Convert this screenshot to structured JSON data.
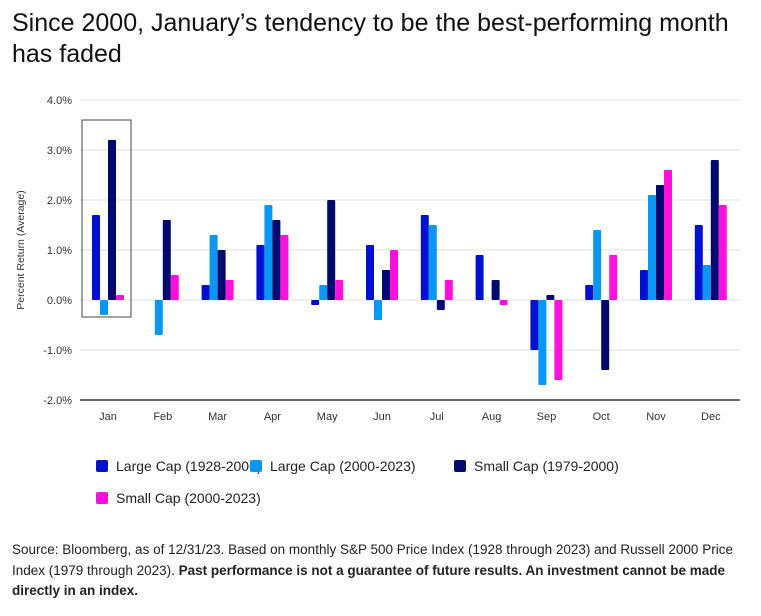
{
  "chart_data": {
    "type": "bar",
    "title": "Since 2000, January’s tendency to be the best-performing month has faded",
    "xlabel": "",
    "ylabel": "Percent Return (Average)",
    "ylim": [
      -2,
      4
    ],
    "yticks": [
      "-2.0%",
      "-1.0%",
      "0.0%",
      "1.0%",
      "2.0%",
      "3.0%",
      "4.0%"
    ],
    "ytick_values": [
      -2,
      -1,
      0,
      1,
      2,
      3,
      4
    ],
    "grid": true,
    "legend_placement": "bottom",
    "highlight_category": "Jan",
    "categories": [
      "Jan",
      "Feb",
      "Mar",
      "Apr",
      "May",
      "Jun",
      "Jul",
      "Aug",
      "Sep",
      "Oct",
      "Nov",
      "Dec"
    ],
    "series": [
      {
        "name": "Large Cap (1928-2000)",
        "color": "#0010d0",
        "values": [
          1.7,
          0.0,
          0.3,
          1.1,
          -0.1,
          1.1,
          1.7,
          0.9,
          -1.0,
          0.3,
          0.6,
          1.5
        ]
      },
      {
        "name": "Large Cap (2000-2023)",
        "color": "#0a96f5",
        "values": [
          -0.3,
          -0.7,
          1.3,
          1.9,
          0.3,
          -0.4,
          1.5,
          0.0,
          -1.7,
          1.4,
          2.1,
          0.7
        ]
      },
      {
        "name": "Small Cap (1979-2000)",
        "color": "#000a6e",
        "values": [
          3.2,
          1.6,
          1.0,
          1.6,
          2.0,
          0.6,
          -0.2,
          0.4,
          0.1,
          -1.4,
          2.3,
          2.8
        ]
      },
      {
        "name": "Small Cap (2000-2023)",
        "color": "#ff10dc",
        "values": [
          0.1,
          0.5,
          0.4,
          1.3,
          0.4,
          1.0,
          0.4,
          -0.1,
          -1.6,
          0.9,
          2.6,
          1.9
        ]
      }
    ]
  },
  "source": {
    "normal": "Source: Bloomberg, as of 12/31/23. Based on monthly S&P 500 Price Index (1928 through 2023) and Russell 2000 Price Index (1979 through 2023). ",
    "bold": "Past performance is not a guarantee of future results. An investment cannot be made directly in an index."
  }
}
